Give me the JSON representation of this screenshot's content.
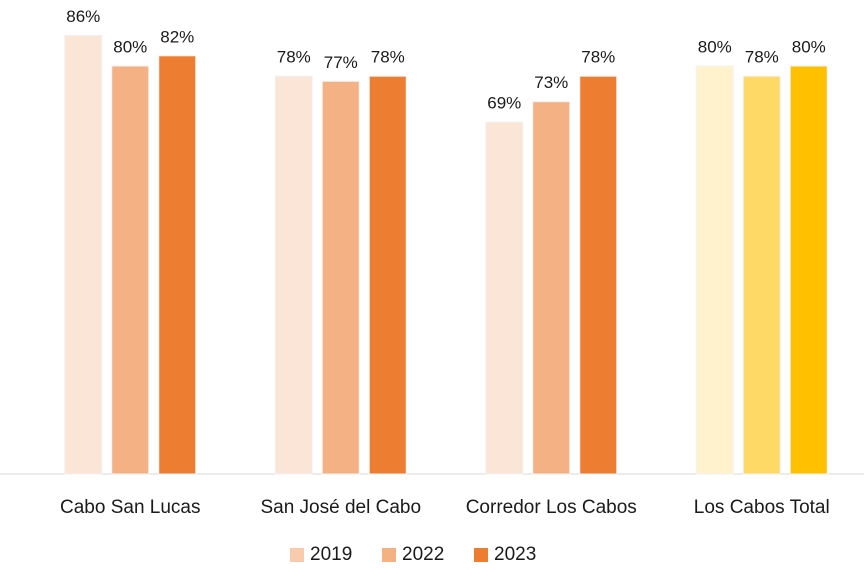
{
  "chart_data": {
    "type": "bar",
    "categories": [
      "Cabo San Lucas",
      "San José del Cabo",
      "Corredor Los Cabos",
      "Los Cabos Total"
    ],
    "series": [
      {
        "name": "2019",
        "color": "#f8cbad",
        "colors": [
          "#fbe5d6",
          "#fbe5d6",
          "#fbe5d6",
          "#fff2cc"
        ],
        "values": [
          86,
          78,
          69,
          80
        ],
        "value_labels": [
          "86%",
          "78%",
          "69%",
          "80%"
        ]
      },
      {
        "name": "2022",
        "color": "#f4b183",
        "colors": [
          "#f4b183",
          "#f4b183",
          "#f4b183",
          "#ffd966"
        ],
        "values": [
          80,
          77,
          73,
          78
        ],
        "value_labels": [
          "80%",
          "77%",
          "73%",
          "78%"
        ]
      },
      {
        "name": "2023",
        "color": "#ed7d31",
        "colors": [
          "#ed7d31",
          "#ed7d31",
          "#ed7d31",
          "#ffc000"
        ],
        "values": [
          82,
          78,
          78,
          80
        ],
        "value_labels": [
          "82%",
          "78%",
          "78%",
          "80%"
        ]
      }
    ],
    "ylim": [
      0,
      90
    ],
    "legend": "bottom"
  }
}
